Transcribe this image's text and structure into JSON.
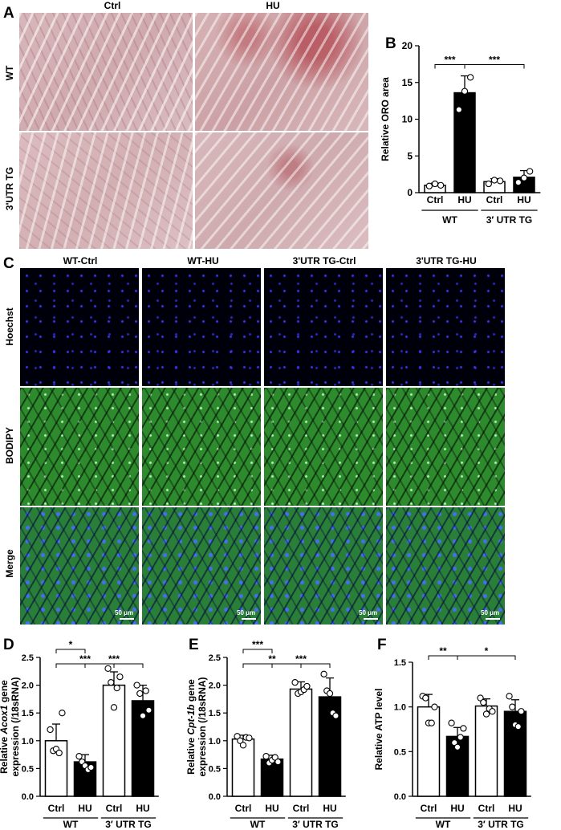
{
  "panels": {
    "A": {
      "letter": "A",
      "col_labels": [
        "Ctrl",
        "HU"
      ],
      "row_labels": [
        "WT",
        "3'UTR TG"
      ]
    },
    "C": {
      "letter": "C",
      "col_labels": [
        "WT-Ctrl",
        "WT-HU",
        "3'UTR TG-Ctrl",
        "3'UTR TG-HU"
      ],
      "row_labels": [
        "Hoechst",
        "BODIPY",
        "Merge"
      ],
      "scale_label": "50 μm"
    }
  },
  "chart_data": [
    {
      "id": "B",
      "letter": "B",
      "type": "bar",
      "ylabel": "Relative ORO area",
      "ylim": [
        0,
        20
      ],
      "yticks": [
        0,
        5,
        10,
        15,
        20
      ],
      "categories": [
        "Ctrl",
        "HU",
        "Ctrl",
        "HU"
      ],
      "groups": [
        {
          "label": "WT",
          "span": [
            0,
            1
          ]
        },
        {
          "label": "3′ UTR TG",
          "span": [
            2,
            3
          ]
        }
      ],
      "values": [
        1.0,
        13.6,
        1.5,
        2.1
      ],
      "errors": [
        0.3,
        2.3,
        0.4,
        0.9
      ],
      "points": [
        [
          0.9,
          1.2,
          1.0
        ],
        [
          11.3,
          13.8,
          15.7
        ],
        [
          1.2,
          1.7,
          1.6
        ],
        [
          1.4,
          2.0,
          2.9
        ]
      ],
      "fills": [
        "white",
        "black",
        "white",
        "black"
      ],
      "significance": [
        {
          "from": 0,
          "to": 1,
          "label": "***"
        },
        {
          "from": 1,
          "to": 3,
          "label": "***"
        }
      ]
    },
    {
      "id": "D",
      "letter": "D",
      "type": "bar",
      "ylabel_parts": [
        "Relative ",
        "Acox1",
        " gene"
      ],
      "ylabel_line2": "expression (/18sRNA)",
      "ylim": [
        0,
        2.5
      ],
      "yticks": [
        0.0,
        0.5,
        1.0,
        1.5,
        2.0,
        2.5
      ],
      "categories": [
        "Ctrl",
        "HU",
        "Ctrl",
        "HU"
      ],
      "groups": [
        {
          "label": "WT",
          "span": [
            0,
            1
          ]
        },
        {
          "label": "3′ UTR TG",
          "span": [
            2,
            3
          ]
        }
      ],
      "values": [
        1.0,
        0.62,
        2.0,
        1.72
      ],
      "errors": [
        0.3,
        0.13,
        0.24,
        0.28
      ],
      "points": [
        [
          1.2,
          0.82,
          0.85,
          0.78,
          1.5
        ],
        [
          0.72,
          0.62,
          0.55,
          0.48,
          0.52
        ],
        [
          2.3,
          2.05,
          1.6,
          1.95,
          2.15
        ],
        [
          2.0,
          1.85,
          1.45,
          1.9,
          1.55
        ]
      ],
      "fills": [
        "white",
        "black",
        "white",
        "black"
      ],
      "significance": [
        {
          "from": 0,
          "to": 1,
          "label": "*"
        },
        {
          "from": 1,
          "to": 3,
          "label": "***"
        },
        {
          "from": 0,
          "to": 2,
          "label": "***"
        }
      ]
    },
    {
      "id": "E",
      "letter": "E",
      "type": "bar",
      "ylabel_parts": [
        "Relative ",
        "Cpt-1b",
        " gene"
      ],
      "ylabel_line2": "expression (/18sRNA)",
      "ylim": [
        0,
        2.5
      ],
      "yticks": [
        0.0,
        0.5,
        1.0,
        1.5,
        2.0,
        2.5
      ],
      "categories": [
        "Ctrl",
        "HU",
        "Ctrl",
        "HU"
      ],
      "groups": [
        {
          "label": "WT",
          "span": [
            0,
            1
          ]
        },
        {
          "label": "3′ UTR TG",
          "span": [
            2,
            3
          ]
        }
      ],
      "values": [
        1.03,
        0.67,
        1.93,
        1.79
      ],
      "errors": [
        0.07,
        0.07,
        0.13,
        0.34
      ],
      "points": [
        [
          1.08,
          1.0,
          0.92,
          1.06,
          1.05
        ],
        [
          0.72,
          0.6,
          0.65,
          0.7,
          0.62
        ],
        [
          2.05,
          1.85,
          1.88,
          1.92,
          1.98
        ],
        [
          2.2,
          1.9,
          1.85,
          1.5,
          1.45
        ]
      ],
      "fills": [
        "white",
        "black",
        "white",
        "black"
      ],
      "significance": [
        {
          "from": 0,
          "to": 1,
          "label": "***"
        },
        {
          "from": 1,
          "to": 3,
          "label": "***"
        },
        {
          "from": 0,
          "to": 2,
          "label": "**"
        }
      ]
    },
    {
      "id": "F",
      "letter": "F",
      "type": "bar",
      "ylabel": "Relative ATP level",
      "ylim": [
        0,
        1.5
      ],
      "yticks": [
        0.0,
        0.5,
        1.0,
        1.5
      ],
      "categories": [
        "Ctrl",
        "HU",
        "Ctrl",
        "HU"
      ],
      "groups": [
        {
          "label": "WT",
          "span": [
            0,
            1
          ]
        },
        {
          "label": "3′ UTR TG",
          "span": [
            2,
            3
          ]
        }
      ],
      "values": [
        1.0,
        0.67,
        1.01,
        0.95
      ],
      "errors": [
        0.14,
        0.1,
        0.08,
        0.13
      ],
      "points": [
        [
          1.12,
          1.1,
          0.82,
          0.82,
          1.0
        ],
        [
          0.82,
          0.6,
          0.55,
          0.66,
          0.76
        ],
        [
          1.1,
          1.05,
          0.92,
          0.98,
          0.95
        ],
        [
          1.12,
          1.0,
          0.8,
          0.78,
          0.95
        ]
      ],
      "fills": [
        "white",
        "black",
        "white",
        "black"
      ],
      "significance": [
        {
          "from": 0,
          "to": 1,
          "label": "**"
        },
        {
          "from": 1,
          "to": 3,
          "label": "*"
        }
      ]
    }
  ]
}
